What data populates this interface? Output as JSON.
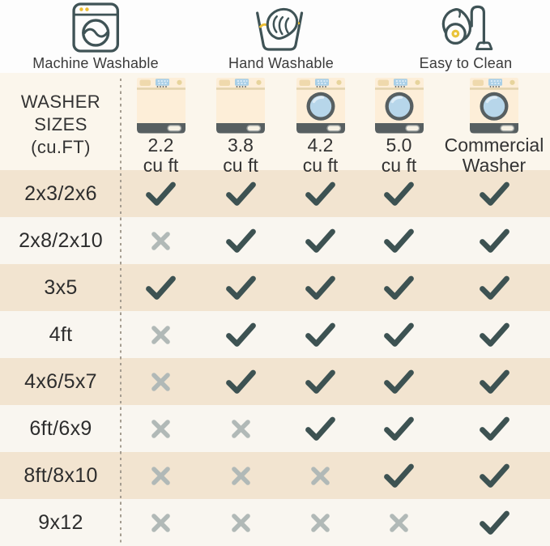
{
  "legend": [
    {
      "label": "Machine Washable",
      "icon": "washing-machine-icon"
    },
    {
      "label": "Hand Washable",
      "icon": "hand-wash-icon"
    },
    {
      "label": "Easy to Clean",
      "icon": "vacuum-icon"
    }
  ],
  "table": {
    "corner_lines": [
      "WASHER",
      "SIZES",
      "(cu.FT)"
    ],
    "columns": [
      {
        "size": "2.2",
        "unit": "cu ft",
        "washer_type": "top-load"
      },
      {
        "size": "3.8",
        "unit": "cu ft",
        "washer_type": "top-load"
      },
      {
        "size": "4.2",
        "unit": "cu ft",
        "washer_type": "front-load"
      },
      {
        "size": "5.0",
        "unit": "cu ft",
        "washer_type": "front-load"
      },
      {
        "size": "Commercial",
        "unit": "Washer",
        "washer_type": "front-load"
      }
    ]
  },
  "chart_data": {
    "type": "table",
    "legend": [
      "Machine Washable",
      "Hand Washable",
      "Easy to Clean"
    ],
    "row_header": "WASHER SIZES (cu.FT)",
    "columns": [
      "2.2 cu ft",
      "3.8 cu ft",
      "4.2 cu ft",
      "5.0 cu ft",
      "Commercial Washer"
    ],
    "rows": [
      "2x3/2x6",
      "2x8/2x10",
      "3x5",
      "4ft",
      "4x6/5x7",
      "6ft/6x9",
      "8ft/8x10",
      "9x12"
    ],
    "cells": [
      [
        "check",
        "check",
        "check",
        "check",
        "check"
      ],
      [
        "x",
        "check",
        "check",
        "check",
        "check"
      ],
      [
        "check",
        "check",
        "check",
        "check",
        "check"
      ],
      [
        "x",
        "check",
        "check",
        "check",
        "check"
      ],
      [
        "x",
        "check",
        "check",
        "check",
        "check"
      ],
      [
        "x",
        "x",
        "check",
        "check",
        "check"
      ],
      [
        "x",
        "x",
        "x",
        "check",
        "check"
      ],
      [
        "x",
        "x",
        "x",
        "x",
        "check"
      ]
    ]
  },
  "colors": {
    "check": "#3d5252",
    "x_mark": "#b1b9b7",
    "icon_stroke": "#3f5356",
    "accent_yellow": "#eebc2f",
    "row_beige": "#f2e4d0",
    "row_white": "#f9f6f0",
    "header_bg": "#fbf6ec",
    "washer_body": "#fdeed8",
    "washer_band": "#575f61",
    "display_blue": "#a9cfe7",
    "panel_tan": "#efd9ad",
    "door_glass": "#b7d6ea"
  }
}
